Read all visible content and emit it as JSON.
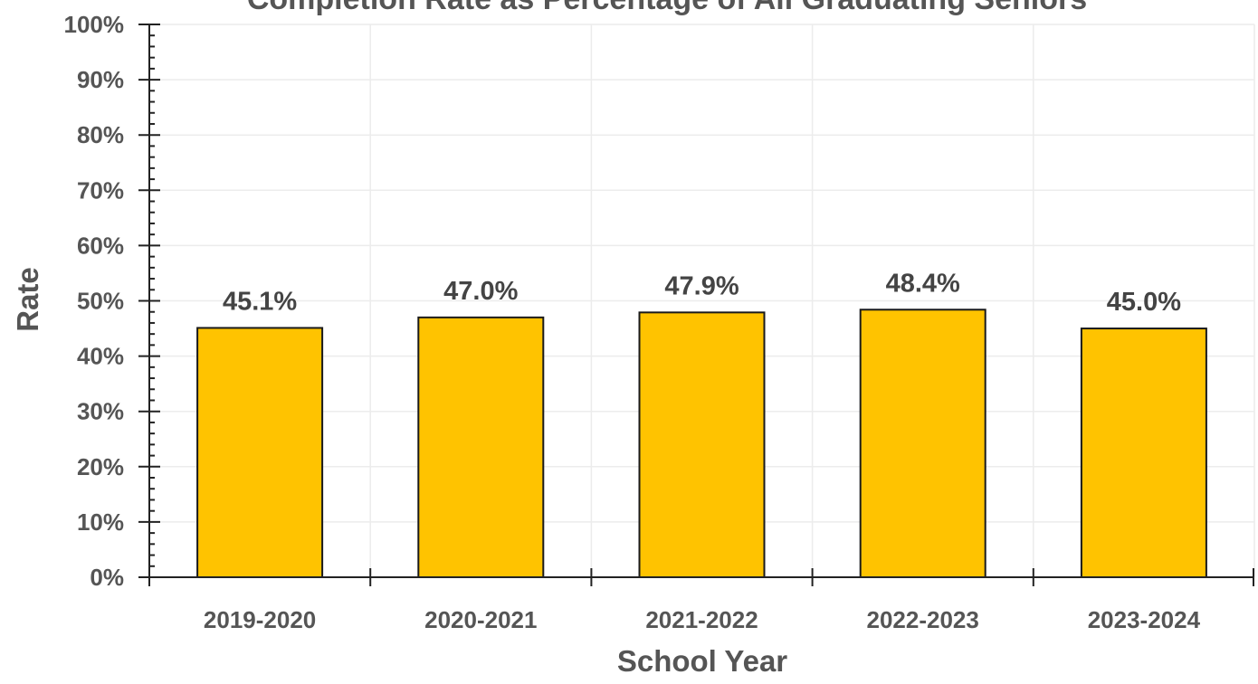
{
  "chart_data": {
    "type": "bar",
    "title": "Completion Rate as Percentage of All Graduating Seniors",
    "xlabel": "School Year",
    "ylabel": "Rate",
    "categories": [
      "2019-2020",
      "2020-2021",
      "2021-2022",
      "2022-2023",
      "2023-2024"
    ],
    "values": [
      45.1,
      47.0,
      47.9,
      48.4,
      45.0
    ],
    "data_labels": [
      "45.1%",
      "47.0%",
      "47.9%",
      "48.4%",
      "45.0%"
    ],
    "ylim": [
      0,
      100
    ],
    "yticks": [
      0,
      10,
      20,
      30,
      40,
      50,
      60,
      70,
      80,
      90,
      100
    ],
    "ytick_labels": [
      "0%",
      "10%",
      "20%",
      "30%",
      "40%",
      "50%",
      "60%",
      "70%",
      "80%",
      "90%",
      "100%"
    ],
    "grid": true,
    "bar_color": "#FFC300",
    "bar_edge_color": "#1a1a1a"
  }
}
